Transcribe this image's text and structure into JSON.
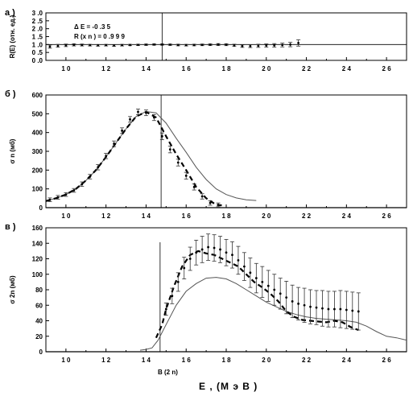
{
  "figure": {
    "x_title": "E , (М э В )",
    "x_title_sub": "B (2 n)"
  },
  "chart_data": [
    {
      "type": "scatter",
      "panel_label": "а )",
      "ylabel": "R(E) (отн. ед.)",
      "xlim": [
        9,
        27
      ],
      "ylim": [
        0,
        3
      ],
      "xticks": [
        10,
        12,
        14,
        16,
        18,
        20,
        22,
        24,
        26
      ],
      "yticks": [
        0.0,
        0.5,
        1.0,
        1.5,
        2.0,
        2.5,
        3.0
      ],
      "ytick_labels": [
        "0 .0",
        "0 .5",
        "1 .0",
        "1 .5",
        "2 .0",
        "2 .5",
        "3 .0"
      ],
      "vline_x": 14.8,
      "hline_y": 1.0,
      "annotations": [
        "Δ E  =  -0 .3 5",
        "R (x n )  =  0 .9 9 9"
      ],
      "series": [
        {
          "x": [
            9.2,
            9.6,
            10.0,
            10.4,
            10.8,
            11.2,
            11.6,
            12.0,
            12.4,
            12.8,
            13.2,
            13.6,
            14.0,
            14.4,
            14.8,
            15.2,
            15.6,
            16.0,
            16.4,
            16.8,
            17.2,
            17.6,
            18.0,
            18.4,
            18.8,
            19.2,
            19.6,
            20.0,
            20.4,
            20.8,
            21.2,
            21.6
          ],
          "y": [
            0.87,
            0.92,
            0.95,
            0.98,
            0.97,
            0.96,
            0.95,
            0.96,
            0.94,
            0.96,
            0.97,
            0.98,
            0.99,
            1.0,
            1.0,
            0.99,
            0.97,
            0.96,
            0.97,
            0.98,
            0.99,
            1.0,
            0.99,
            0.95,
            0.9,
            0.9,
            0.92,
            0.94,
            0.95,
            0.97,
            1.0,
            1.1
          ],
          "err": [
            0.1,
            0.09,
            0.08,
            0.07,
            0.06,
            0.05,
            0.05,
            0.05,
            0.05,
            0.05,
            0.04,
            0.04,
            0.04,
            0.04,
            0.04,
            0.04,
            0.05,
            0.05,
            0.05,
            0.05,
            0.05,
            0.06,
            0.06,
            0.07,
            0.08,
            0.09,
            0.1,
            0.1,
            0.11,
            0.12,
            0.14,
            0.2
          ]
        }
      ]
    },
    {
      "type": "line",
      "panel_label": "б )",
      "ylabel": "σ n (мб)",
      "xlim": [
        9,
        27
      ],
      "ylim": [
        0,
        600
      ],
      "xticks": [
        10,
        12,
        14,
        16,
        18,
        20,
        22,
        24,
        26
      ],
      "yticks": [
        0,
        100,
        200,
        300,
        400,
        500,
        600
      ],
      "vline_x": 14.75,
      "series": [
        {
          "name": "",
          "style": "solid",
          "x": [
            9.0,
            9.5,
            10.0,
            10.5,
            11.0,
            11.5,
            12.0,
            12.5,
            13.0,
            13.5,
            14.0,
            14.5,
            15.0,
            15.5,
            16.0,
            16.5,
            17.0,
            17.5,
            18.0,
            18.5,
            19.0,
            19.5
          ],
          "y": [
            35,
            50,
            70,
            100,
            145,
            200,
            270,
            345,
            420,
            485,
            512,
            505,
            450,
            370,
            295,
            215,
            150,
            100,
            70,
            52,
            42,
            38
          ]
        },
        {
          "name": "",
          "style": "dashed",
          "x": [
            9.0,
            9.5,
            10.0,
            10.5,
            11.0,
            11.5,
            12.0,
            12.5,
            13.0,
            13.5,
            14.0,
            14.5,
            15.0,
            15.5,
            16.0,
            16.5,
            17.0,
            17.5,
            17.8
          ],
          "y": [
            35,
            50,
            70,
            100,
            145,
            200,
            270,
            345,
            420,
            485,
            510,
            480,
            380,
            285,
            200,
            110,
            50,
            15,
            12
          ]
        },
        {
          "name": "",
          "style": "points",
          "x": [
            9.2,
            9.6,
            10.0,
            10.4,
            10.8,
            11.2,
            11.6,
            12.0,
            12.4,
            12.8,
            13.2,
            13.6,
            14.0,
            14.4,
            14.8,
            15.2,
            15.6,
            16.0,
            16.4,
            16.8,
            17.2,
            17.6
          ],
          "y": [
            42,
            55,
            70,
            92,
            125,
            165,
            215,
            275,
            340,
            410,
            470,
            510,
            505,
            480,
            380,
            310,
            240,
            170,
            110,
            60,
            25,
            15
          ],
          "err": [
            10,
            10,
            10,
            10,
            12,
            12,
            14,
            14,
            15,
            15,
            15,
            15,
            15,
            16,
            18,
            18,
            18,
            18,
            16,
            14,
            12,
            10
          ]
        }
      ]
    },
    {
      "type": "line",
      "panel_label": "в )",
      "ylabel": "σ 2n (мб)",
      "xlim": [
        9,
        27
      ],
      "ylim": [
        0,
        160
      ],
      "xticks": [
        10,
        12,
        14,
        16,
        18,
        20,
        22,
        24,
        26
      ],
      "yticks": [
        0,
        20,
        40,
        60,
        80,
        100,
        120,
        140,
        160
      ],
      "vline_x": 14.7,
      "series": [
        {
          "name": "",
          "style": "solid",
          "x": [
            13.7,
            14.0,
            14.3,
            14.6,
            15.0,
            15.5,
            16.0,
            16.5,
            17.0,
            17.5,
            18.0,
            18.5,
            19.0,
            19.5,
            20.0,
            20.5,
            21.0,
            21.5,
            22.0,
            22.5,
            23.0,
            23.5,
            24.0,
            24.5,
            25.0,
            25.5,
            26.0,
            26.5,
            27.0
          ],
          "y": [
            2,
            3,
            5,
            15,
            35,
            60,
            78,
            88,
            95,
            96,
            94,
            88,
            80,
            72,
            64,
            58,
            52,
            48,
            45,
            43,
            42,
            41,
            40,
            38,
            33,
            26,
            20,
            18,
            15
          ]
        },
        {
          "name": "",
          "style": "dashed",
          "x": [
            14.5,
            14.8,
            15.0,
            15.4,
            15.8,
            16.2,
            16.6,
            17.0,
            17.4,
            17.8,
            18.2,
            18.6,
            19.0,
            19.4,
            19.8,
            20.2,
            20.6,
            21.0,
            21.4,
            21.8,
            22.2,
            22.6,
            23.0,
            23.4,
            23.8,
            24.2,
            24.6
          ],
          "y": [
            18,
            35,
            55,
            85,
            110,
            125,
            130,
            127,
            125,
            120,
            115,
            110,
            100,
            90,
            83,
            75,
            65,
            52,
            45,
            41,
            40,
            39,
            38,
            40,
            38,
            32,
            28
          ]
        },
        {
          "name": "",
          "style": "points",
          "x": [
            15.0,
            15.3,
            15.6,
            15.9,
            16.2,
            16.5,
            16.8,
            17.1,
            17.4,
            17.7,
            18.0,
            18.3,
            18.6,
            18.9,
            19.2,
            19.5,
            19.8,
            20.1,
            20.4,
            20.7,
            21.0,
            21.3,
            21.6,
            21.9,
            22.2,
            22.5,
            22.8,
            23.1,
            23.4,
            23.7,
            24.0,
            24.3,
            24.6
          ],
          "y": [
            55,
            72,
            90,
            108,
            120,
            128,
            132,
            135,
            134,
            132,
            128,
            125,
            118,
            110,
            102,
            95,
            90,
            85,
            80,
            75,
            70,
            65,
            62,
            60,
            58,
            57,
            56,
            55,
            55,
            55,
            54,
            53,
            52
          ],
          "err": [
            8,
            10,
            12,
            14,
            15,
            16,
            17,
            17,
            17,
            17,
            17,
            17,
            18,
            18,
            19,
            19,
            20,
            20,
            20,
            20,
            21,
            21,
            21,
            22,
            22,
            22,
            23,
            23,
            23,
            24,
            24,
            24,
            24
          ]
        }
      ]
    }
  ]
}
